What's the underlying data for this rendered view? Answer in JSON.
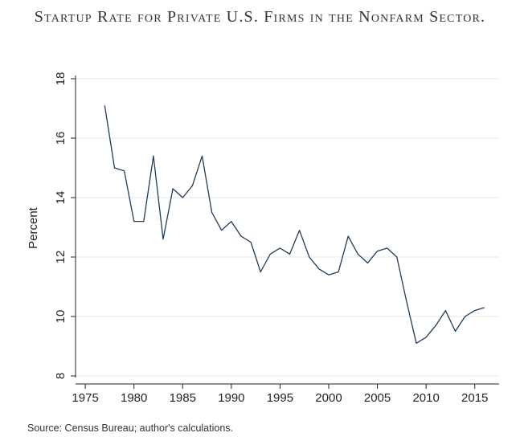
{
  "chart_data": {
    "type": "line",
    "title": "Startup Rate for Private U.S. Firms in the Nonfarm Sector.",
    "xlabel": "",
    "ylabel": "Percent",
    "xlim": [
      1974,
      2017.5
    ],
    "ylim": [
      8,
      18
    ],
    "xticks": [
      1975,
      1980,
      1985,
      1990,
      1995,
      2000,
      2005,
      2010,
      2015
    ],
    "yticks": [
      8,
      10,
      12,
      14,
      16,
      18
    ],
    "grid": true,
    "line_color": "#1f3b5a",
    "series": [
      {
        "x": [
          1977,
          1978,
          1979,
          1980,
          1981,
          1982,
          1983,
          1984,
          1985,
          1986,
          1987,
          1988,
          1989,
          1990,
          1991,
          1992,
          1993,
          1994,
          1995,
          1996,
          1997,
          1998,
          1999,
          2000,
          2001,
          2002,
          2003,
          2004,
          2005,
          2006,
          2007,
          2008,
          2009,
          2010,
          2011,
          2012,
          2013,
          2014,
          2015,
          2016
        ],
        "values": [
          17.1,
          15.0,
          14.9,
          13.2,
          13.2,
          15.4,
          12.6,
          14.3,
          14.0,
          14.4,
          15.4,
          13.5,
          12.9,
          13.2,
          12.7,
          12.5,
          11.5,
          12.1,
          12.3,
          12.1,
          12.9,
          12.0,
          11.6,
          11.4,
          11.5,
          12.7,
          12.1,
          11.8,
          12.2,
          12.3,
          12.0,
          10.5,
          9.1,
          9.3,
          9.7,
          10.2,
          9.5,
          10.0,
          10.2,
          10.3
        ]
      }
    ]
  },
  "source_note": "Source: Census Bureau; author's calculations."
}
